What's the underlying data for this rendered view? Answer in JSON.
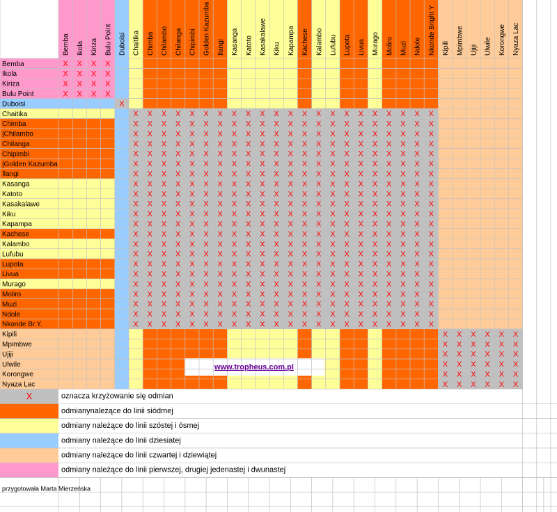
{
  "columns": [
    {
      "label": "Bemba",
      "color": "#ff99cc"
    },
    {
      "label": "Ikola",
      "color": "#ff99cc"
    },
    {
      "label": "Kiriza",
      "color": "#ff99cc"
    },
    {
      "label": "Bulu Point",
      "color": "#ff99cc"
    },
    {
      "label": "Duboisi",
      "color": "#99ccff"
    },
    {
      "label": "Chaitika",
      "color": "#ffff99"
    },
    {
      "label": "Chimba",
      "color": "#ff6600"
    },
    {
      "label": "Chilambo",
      "color": "#ff6600"
    },
    {
      "label": "Chilanga",
      "color": "#ff6600"
    },
    {
      "label": "Chipimbi",
      "color": "#ff6600"
    },
    {
      "label": "Golden Kazumba",
      "color": "#ff6600"
    },
    {
      "label": "Ilangi",
      "color": "#ff6600"
    },
    {
      "label": "Kasanga",
      "color": "#ffff99"
    },
    {
      "label": "Katoto",
      "color": "#ffff99"
    },
    {
      "label": "Kasakalawe",
      "color": "#ffff99"
    },
    {
      "label": "Kiku",
      "color": "#ffff99"
    },
    {
      "label": "Kapampa",
      "color": "#ffff99"
    },
    {
      "label": "Kachese",
      "color": "#ff6600"
    },
    {
      "label": "Kalambo",
      "color": "#ffff99"
    },
    {
      "label": "Lufubu",
      "color": "#ffff99"
    },
    {
      "label": "Lupota",
      "color": "#ff6600"
    },
    {
      "label": "Livua",
      "color": "#ff6600"
    },
    {
      "label": "Murago",
      "color": "#ffff99"
    },
    {
      "label": "Moliro",
      "color": "#ff6600"
    },
    {
      "label": "Muzi",
      "color": "#ff6600"
    },
    {
      "label": "Ndole",
      "color": "#ff6600"
    },
    {
      "label": "Nkonde Bright Y",
      "color": "#ff6600"
    },
    {
      "label": "Kipili",
      "color": "#ffcc99"
    },
    {
      "label": "Mpimbwe",
      "color": "#ffcc99"
    },
    {
      "label": "Ujiji",
      "color": "#ffcc99"
    },
    {
      "label": "Ulwile",
      "color": "#ffcc99"
    },
    {
      "label": "Korongwe",
      "color": "#ffcc99"
    },
    {
      "label": "Nyaza Lac",
      "color": "#ffcc99"
    }
  ],
  "rows": [
    {
      "label": "Bemba",
      "color": "#ff99cc"
    },
    {
      "label": "Ikola",
      "color": "#ff99cc"
    },
    {
      "label": "Kiriza",
      "color": "#ff99cc"
    },
    {
      "label": "Bulu Point",
      "color": "#ff99cc"
    },
    {
      "label": "Duboisi",
      "color": "#99ccff"
    },
    {
      "label": "Chaitika",
      "color": "#ffff99"
    },
    {
      "label": "Chimba",
      "color": "#ff6600"
    },
    {
      "label": "|Chilambo",
      "color": "#ff6600"
    },
    {
      "label": "Chilanga",
      "color": "#ff6600"
    },
    {
      "label": "Chipimbi",
      "color": "#ff6600"
    },
    {
      "label": "|Golden Kazumba",
      "color": "#ff6600"
    },
    {
      "label": "Ilangi",
      "color": "#ff6600"
    },
    {
      "label": "Kasanga",
      "color": "#ffff99"
    },
    {
      "label": "Katoto",
      "color": "#ffff99"
    },
    {
      "label": "Kasakalawe",
      "color": "#ffff99"
    },
    {
      "label": "Kiku",
      "color": "#ffff99"
    },
    {
      "label": "Kapampa",
      "color": "#ffff99"
    },
    {
      "label": "Kachese",
      "color": "#ff6600"
    },
    {
      "label": "Kalambo",
      "color": "#ffff99"
    },
    {
      "label": "Lufubu",
      "color": "#ffff99"
    },
    {
      "label": "Lupota",
      "color": "#ff6600"
    },
    {
      "label": "Livua",
      "color": "#ff6600"
    },
    {
      "label": "Murago",
      "color": "#ffff99"
    },
    {
      "label": "Moliro",
      "color": "#ff6600"
    },
    {
      "label": "Muzi",
      "color": "#ff6600"
    },
    {
      "label": "Ndole",
      "color": "#ff6600"
    },
    {
      "label": "Nkonde Br.Y.",
      "color": "#ff6600"
    },
    {
      "label": "Kipili",
      "color": "#ffcc99"
    },
    {
      "label": "Mpimbwe",
      "color": "#ffcc99"
    },
    {
      "label": "Ujiji",
      "color": "#ffcc99"
    },
    {
      "label": "Ulwile",
      "color": "#ffcc99"
    },
    {
      "label": "Korongwe",
      "color": "#ffcc99"
    },
    {
      "label": "Nyaza Lac",
      "color": "#ffcc99"
    }
  ],
  "cross_mark": "X",
  "cross_color": "#c0c0c0",
  "blocks": [
    {
      "rows": [
        0,
        3
      ],
      "cols": [
        0,
        3
      ],
      "color": "#ff99cc"
    },
    {
      "rows": [
        4,
        4
      ],
      "cols": [
        4,
        4
      ]
    },
    {
      "rows": [
        5,
        26
      ],
      "cols": [
        5,
        26
      ]
    },
    {
      "rows": [
        27,
        32
      ],
      "cols": [
        27,
        32
      ]
    }
  ],
  "website": "www.tropheus.com.pl",
  "legend": [
    {
      "color": "#c0c0c0",
      "mark": "X",
      "label": "oznacza  krzyżowanie się odmian"
    },
    {
      "color": "#ff6600",
      "label": "odmianynależące do linii siódmej"
    },
    {
      "color": "#ffff99",
      "label": "odmiany należące do linii szóstej i ósmej"
    },
    {
      "color": "#99ccff",
      "label": "odmiany należące do linii dziesiatej"
    },
    {
      "color": "#ffcc99",
      "label": "odmiany należące do linii czwartej i dziewiątej"
    },
    {
      "color": "#ff99cc",
      "label": "odmiany należące do linii pierwszej, drugiej jedenastej i dwunastej"
    }
  ],
  "author": "przygotowała Marta Mierzeńska"
}
